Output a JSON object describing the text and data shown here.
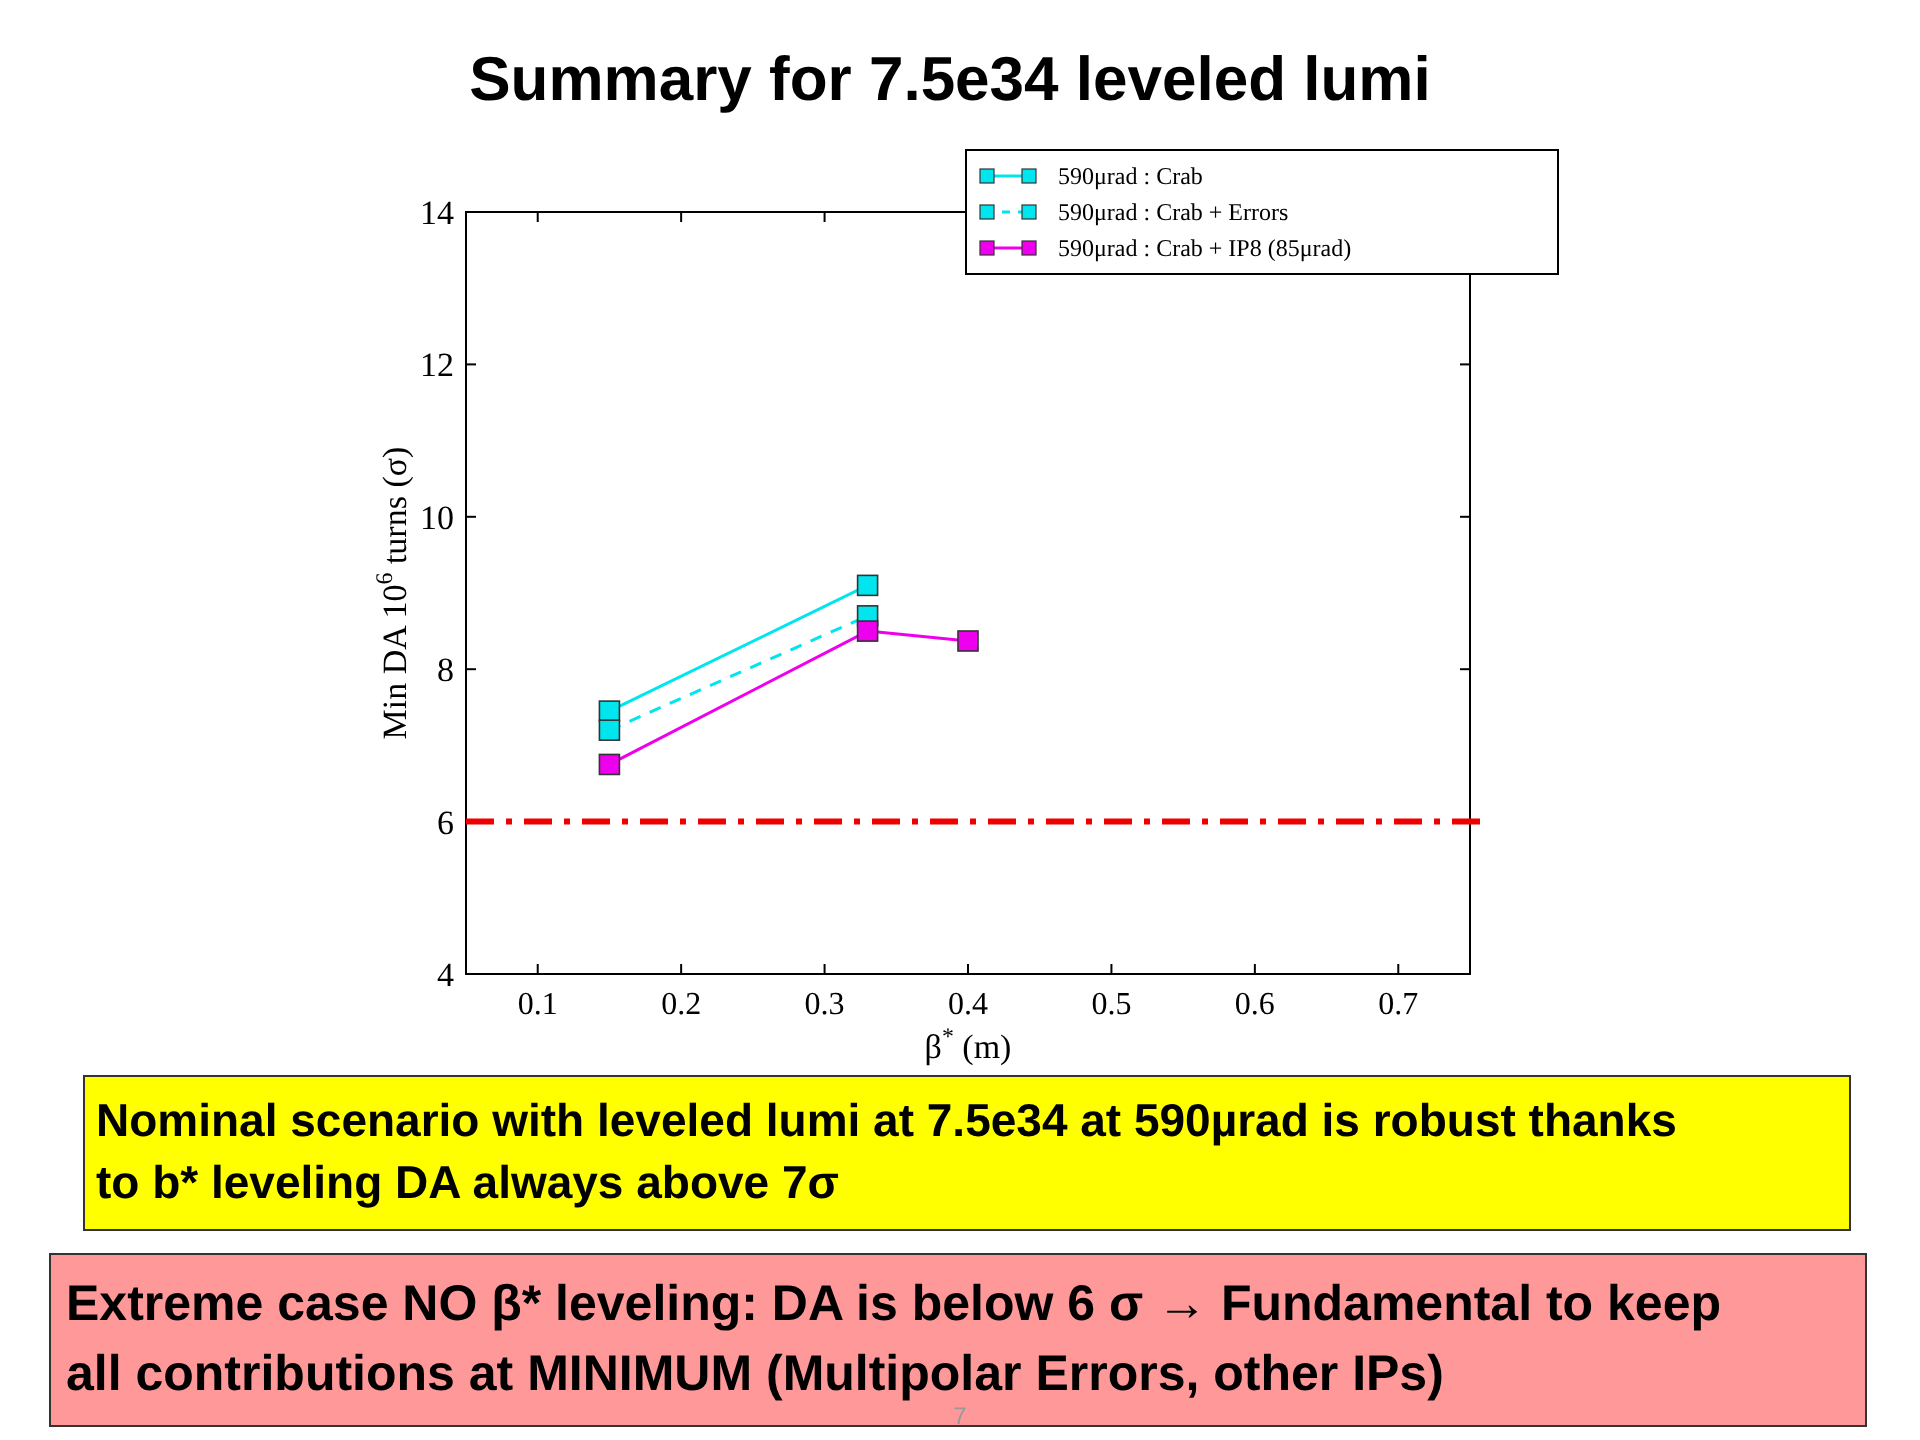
{
  "chart_data": {
    "type": "line",
    "title": "Summary for 7.5e34 leveled lumi",
    "xlabel": "β$^{*}$ (m)",
    "ylabel": "Min DA 10$^{6}$  turns (σ)",
    "xlim": [
      0.05,
      0.75
    ],
    "xticks": [
      0.1,
      0.2,
      0.3,
      0.4,
      0.5,
      0.6,
      0.7
    ],
    "ylim": [
      4,
      14
    ],
    "yticks": [
      4,
      6,
      8,
      10,
      12,
      14
    ],
    "marker": "square",
    "legend": "top right",
    "grid": false,
    "series": [
      {
        "name": "590μrad : Crab",
        "color": "#00e5ee",
        "line_style": "solid",
        "x": [
          0.15,
          0.33
        ],
        "values": [
          7.45,
          9.1
        ]
      },
      {
        "name": "590μrad : Crab + Errors",
        "color": "#00e5ee",
        "line_style": "dashed",
        "x": [
          0.15,
          0.33
        ],
        "values": [
          7.2,
          8.7
        ]
      },
      {
        "name": "590μrad : Crab + IP8 (85μrad)",
        "color": "#ee00ee",
        "line_style": "solid",
        "x": [
          0.15,
          0.33,
          0.4
        ],
        "values": [
          6.75,
          8.5,
          8.37
        ]
      }
    ],
    "ref_lines": [
      {
        "axis": "y",
        "value": 6,
        "color": "#ee0000",
        "line_style": "dashdot"
      }
    ],
    "annotations": [
      "Nominal scenario with leveled lumi at 7.5e34 at 590µrad is robust thanks to b* leveling DA always above 7σ",
      "Extreme case NO β* leveling: DA is below 6 σ → Fundamental to keep all contributions at MINIMUM (Multipolar Errors, other IPs)",
      "7"
    ]
  }
}
